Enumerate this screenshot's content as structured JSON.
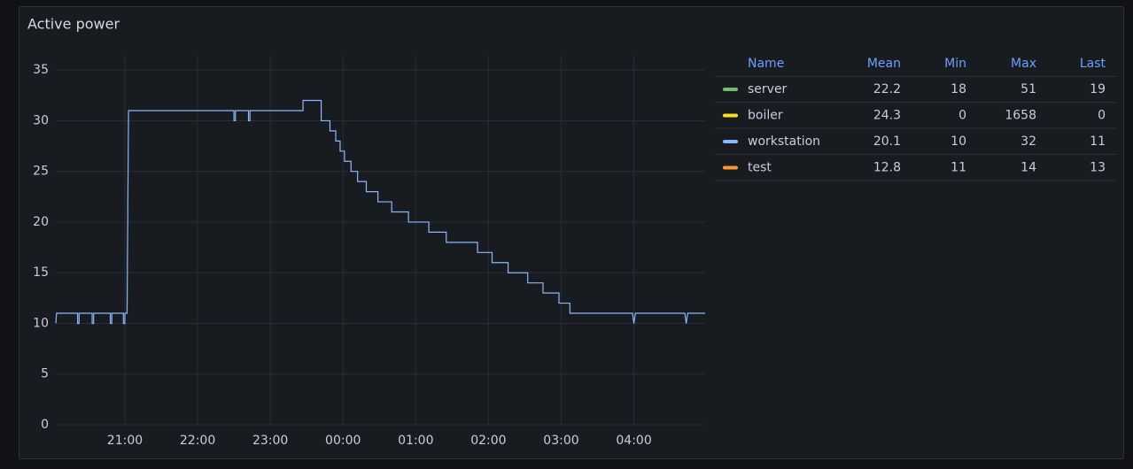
{
  "chart_data": {
    "type": "line",
    "title": "Active power",
    "xlim": [
      20.05,
      28.98
    ],
    "ylim": [
      0,
      36.5
    ],
    "xticks": [
      {
        "value": 21,
        "label": "21:00"
      },
      {
        "value": 22,
        "label": "22:00"
      },
      {
        "value": 23,
        "label": "23:00"
      },
      {
        "value": 24,
        "label": "00:00"
      },
      {
        "value": 25,
        "label": "01:00"
      },
      {
        "value": 26,
        "label": "02:00"
      },
      {
        "value": 27,
        "label": "03:00"
      },
      {
        "value": 28,
        "label": "04:00"
      }
    ],
    "yticks": [
      0,
      5,
      10,
      15,
      20,
      25,
      30,
      35
    ],
    "grid": true,
    "legend_columns": [
      "Name",
      "Mean",
      "Min",
      "Max",
      "Last"
    ],
    "series": [
      {
        "name": "server",
        "color": "#73bf69",
        "hidden": true,
        "stats": [
          22.2,
          18,
          51,
          19
        ]
      },
      {
        "name": "boiler",
        "color": "#fade2a",
        "hidden": true,
        "stats": [
          24.3,
          0,
          1658,
          0
        ]
      },
      {
        "name": "workstation",
        "color": "#8ab8ff",
        "hidden": false,
        "stats": [
          20.1,
          10,
          32,
          11
        ],
        "x": [
          20.05,
          20.06,
          20.35,
          20.35,
          20.37,
          20.37,
          20.55,
          20.55,
          20.57,
          20.57,
          20.8,
          20.8,
          20.82,
          20.82,
          20.98,
          20.98,
          21.0,
          21.0,
          21.03,
          21.05,
          22.5,
          22.5,
          22.52,
          22.52,
          22.7,
          22.7,
          22.72,
          22.72,
          23.45,
          23.45,
          23.7,
          23.7,
          23.82,
          23.82,
          23.9,
          23.9,
          23.96,
          23.96,
          24.02,
          24.02,
          24.11,
          24.11,
          24.2,
          24.2,
          24.32,
          24.32,
          24.48,
          24.48,
          24.67,
          24.67,
          24.9,
          24.9,
          25.18,
          25.18,
          25.42,
          25.42,
          25.85,
          25.85,
          26.05,
          26.05,
          26.27,
          26.27,
          26.54,
          26.54,
          26.75,
          26.75,
          26.97,
          26.97,
          27.12,
          27.12,
          27.98,
          28.0,
          28.02,
          28.7,
          28.72,
          28.74,
          28.98
        ],
        "values": [
          10,
          11,
          11,
          10,
          10,
          11,
          11,
          10,
          10,
          11,
          11,
          10,
          10,
          11,
          11,
          10,
          10,
          11,
          11,
          31,
          31,
          30,
          30,
          31,
          31,
          30,
          30,
          31,
          31,
          32,
          32,
          30,
          30,
          29,
          29,
          28,
          28,
          27,
          27,
          26,
          26,
          25,
          25,
          24,
          24,
          23,
          23,
          22,
          22,
          21,
          21,
          20,
          20,
          19,
          19,
          18,
          18,
          17,
          17,
          16,
          16,
          15,
          15,
          14,
          14,
          13,
          13,
          12,
          12,
          11,
          11,
          10,
          11,
          11,
          10,
          11,
          11
        ]
      },
      {
        "name": "test",
        "color": "#ff9830",
        "hidden": true,
        "stats": [
          12.8,
          11,
          14,
          13
        ]
      }
    ]
  }
}
